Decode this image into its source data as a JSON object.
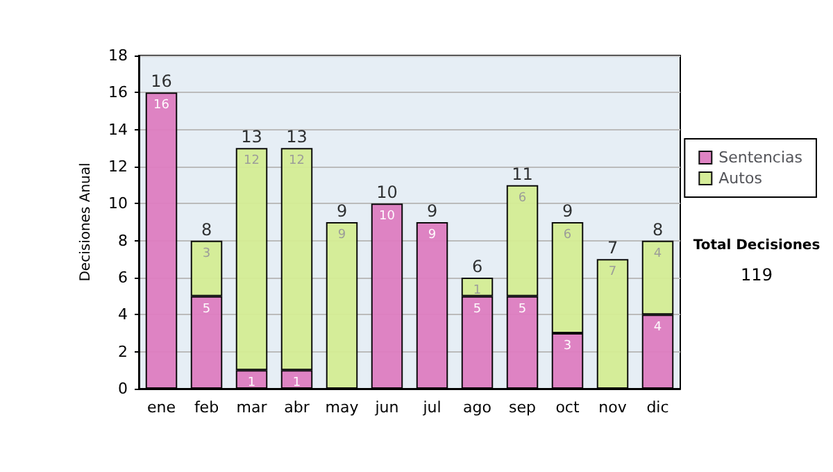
{
  "chart_data": {
    "type": "bar",
    "stacked": true,
    "ylabel": "Decisiones Anual",
    "categories": [
      "ene",
      "feb",
      "mar",
      "abr",
      "may",
      "jun",
      "jul",
      "ago",
      "sep",
      "oct",
      "nov",
      "dic"
    ],
    "series": [
      {
        "name": "Sentencias",
        "color": "#dd7cc0",
        "values": [
          16,
          5,
          1,
          1,
          0,
          10,
          9,
          5,
          5,
          3,
          0,
          4
        ],
        "value_labels": [
          "16",
          "5",
          "1",
          "1",
          null,
          "10",
          "9",
          "5",
          "5",
          "3",
          null,
          "4"
        ]
      },
      {
        "name": "Autos",
        "color": "#d4ec94",
        "values": [
          0,
          3,
          12,
          12,
          9,
          0,
          0,
          1,
          6,
          6,
          7,
          4
        ],
        "value_labels": [
          null,
          "3",
          "12",
          "12",
          "9",
          null,
          null,
          "1",
          "6",
          "6",
          "7",
          "4"
        ]
      }
    ],
    "totals": [
      "16",
      "8",
      "13",
      "13",
      "9",
      "10",
      "9",
      "6",
      "11",
      "9",
      "7",
      "8"
    ],
    "ylim": [
      0,
      18
    ],
    "yticks": [
      0,
      2,
      4,
      6,
      8,
      10,
      12,
      14,
      16,
      18
    ],
    "grid": "y",
    "legend": "right",
    "annotations": [
      "Total Decisiones",
      "119"
    ]
  }
}
